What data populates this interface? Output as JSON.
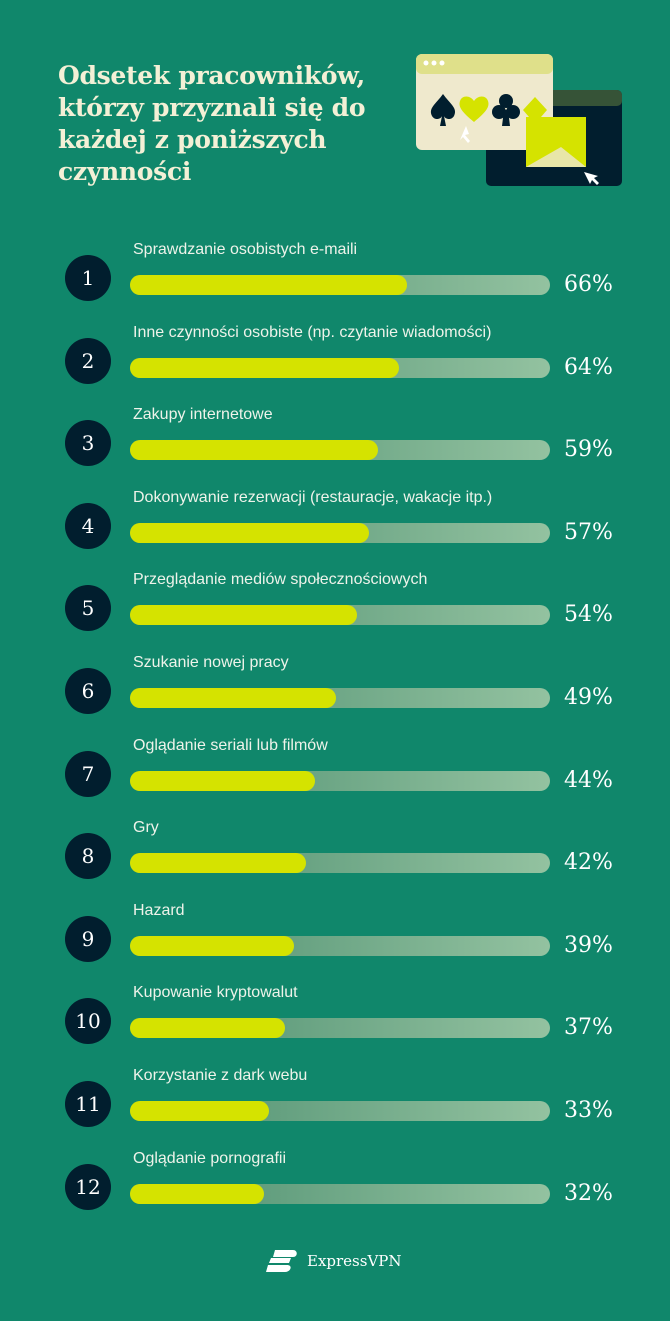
{
  "title": "Odsetek pracowników, którzy przyznali się do każdej z poniższych czynności",
  "colors": {
    "background": "#10876b",
    "bar_fill": "#d5e300",
    "rank_circle": "#011e2e",
    "title": "#f3f0d6"
  },
  "illustration": {
    "icons": [
      "browser-window-icon",
      "spade-icon",
      "heart-icon",
      "club-icon",
      "diamond-icon",
      "envelope-icon",
      "cursor-icon"
    ]
  },
  "chart_data": {
    "type": "bar",
    "orientation": "horizontal",
    "title": "Odsetek pracowników, którzy przyznali się do każdej z poniższych czynności",
    "ranks": [
      "1",
      "2",
      "3",
      "4",
      "5",
      "6",
      "7",
      "8",
      "9",
      "10",
      "11",
      "12"
    ],
    "categories": [
      "Sprawdzanie osobistych e-maili",
      "Inne czynności osobiste (np. czytanie wiadomości)",
      "Zakupy internetowe",
      "Dokonywanie rezerwacji (restauracje, wakacje itp.)",
      "Przeglądanie mediów społecznościowych",
      "Szukanie nowej pracy",
      "Oglądanie seriali lub filmów",
      "Gry",
      "Hazard",
      "Kupowanie kryptowalut",
      "Korzystanie z dark webu",
      "Oglądanie pornografii"
    ],
    "values": [
      66,
      64,
      59,
      57,
      54,
      49,
      44,
      42,
      39,
      37,
      33,
      32
    ],
    "value_labels": [
      "66%",
      "64%",
      "59%",
      "57%",
      "54%",
      "49%",
      "44%",
      "42%",
      "39%",
      "37%",
      "33%",
      "32%"
    ],
    "xlim": [
      0,
      100
    ]
  },
  "footer": {
    "brand": "ExpressVPN"
  }
}
